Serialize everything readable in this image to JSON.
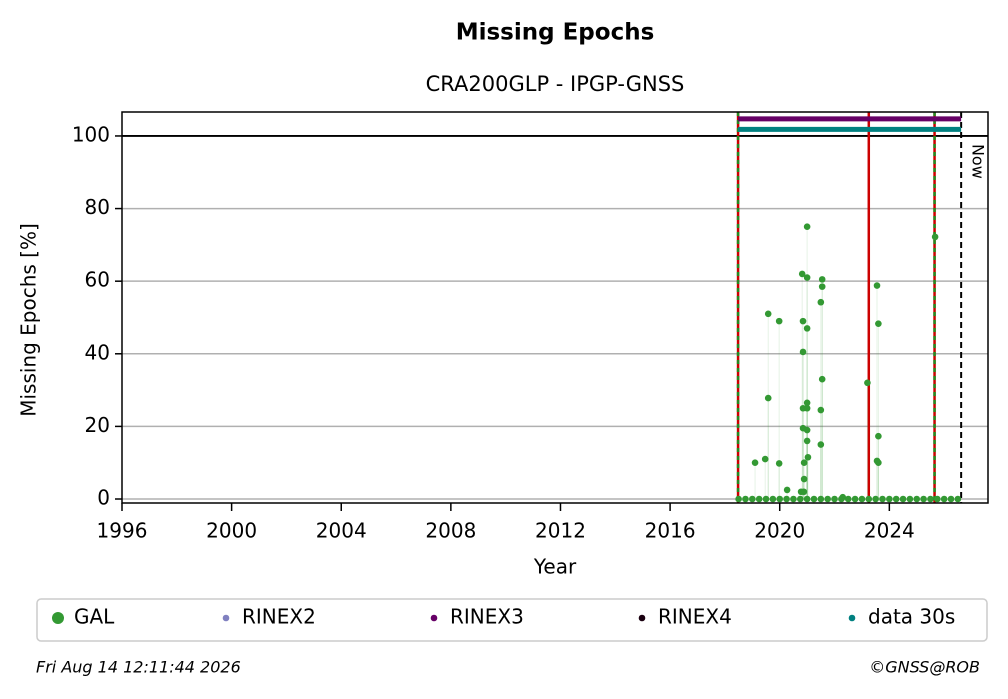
{
  "chart_data": {
    "type": "scatter",
    "title": "Missing Epochs",
    "subtitle": "CRA200GLP - IPGP-GNSS",
    "x_label": "Year",
    "y_label": "Missing Epochs [%]",
    "xlim": [
      1996,
      2027.6
    ],
    "ylim": [
      -1.1,
      106.6
    ],
    "xticks": [
      1996,
      2000,
      2004,
      2008,
      2012,
      2016,
      2020,
      2024
    ],
    "yticks": [
      0,
      20,
      40,
      60,
      80,
      100
    ],
    "grid": true,
    "hline": {
      "value": 100,
      "color": "#000000"
    },
    "events": [
      {
        "x": 2018.48,
        "colors": [
          "#cc0000",
          "#228b22"
        ]
      },
      {
        "x": 2023.25,
        "colors": [
          "#cc0000"
        ]
      },
      {
        "x": 2025.65,
        "colors": [
          "#cc0000",
          "#228b22"
        ]
      }
    ],
    "now": {
      "x": 2026.62,
      "label": "Now"
    },
    "series": [
      {
        "name": "GAL",
        "color": "#339933",
        "x": [
          2019.1,
          2019.47,
          2019.58,
          2019.58,
          2019.98,
          2019.98,
          2020.27,
          2020.82,
          2020.85,
          2020.85,
          2020.85,
          2020.85,
          2020.89,
          2020.89,
          2021.0,
          2021.0,
          2021.0,
          2021.0,
          2021.0,
          2021.0,
          2021.0,
          2021.03,
          2021.55,
          2021.55,
          2021.5,
          2021.55,
          2021.5,
          2021.5,
          2022.3,
          2023.2,
          2023.55,
          2023.6,
          2023.6,
          2023.55,
          2023.6,
          2025.67,
          2020.78,
          2020.88,
          2018.5,
          2018.75,
          2019.0,
          2019.25,
          2019.5,
          2019.75,
          2020.0,
          2020.25,
          2020.5,
          2020.75,
          2021.0,
          2021.25,
          2021.5,
          2021.75,
          2022.0,
          2022.25,
          2022.5,
          2022.75,
          2023.0,
          2023.25,
          2023.5,
          2023.75,
          2024.0,
          2024.25,
          2024.5,
          2024.75,
          2025.0,
          2025.25,
          2025.5,
          2025.75,
          2026.0,
          2026.25,
          2026.5
        ],
        "values": [
          10,
          11,
          51,
          27.8,
          49,
          9.8,
          2.5,
          62,
          49,
          40.5,
          25,
          19.5,
          10,
          5.5,
          75,
          61,
          47,
          26.5,
          25,
          19,
          16,
          11.5,
          60.5,
          58.5,
          54.2,
          33,
          24.5,
          15,
          0.5,
          32,
          58.8,
          48.3,
          17.3,
          10.5,
          10,
          72.2,
          2,
          2,
          0,
          0,
          0,
          0,
          0,
          0,
          0,
          0,
          0,
          0,
          0,
          0,
          0,
          0,
          0,
          0,
          0,
          0,
          0,
          0,
          0,
          0,
          0,
          0,
          0,
          0,
          0,
          0,
          0,
          0,
          0,
          0,
          0
        ]
      },
      {
        "name": "RINEX2",
        "color": "#8080c0",
        "x": [],
        "values": []
      },
      {
        "name": "RINEX3",
        "color": "#660066",
        "line_width": 5,
        "x": [
          2018.48,
          2026.62
        ],
        "values": [
          104.7,
          104.7
        ]
      },
      {
        "name": "RINEX4",
        "color": "#1a0010",
        "x": [],
        "values": []
      },
      {
        "name": "data 30s",
        "color": "#008080",
        "line_width": 5,
        "x": [
          2018.48,
          2026.62
        ],
        "values": [
          101.8,
          101.8
        ]
      }
    ],
    "timestamp": "Fri Aug 14 12:11:44 2026",
    "credit": "©GNSS@ROB"
  }
}
